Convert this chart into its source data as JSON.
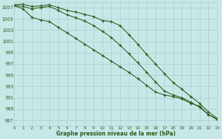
{
  "x": [
    0,
    1,
    2,
    3,
    4,
    5,
    6,
    7,
    8,
    9,
    10,
    11,
    12,
    13,
    14,
    15,
    16,
    17,
    18,
    19,
    20,
    21,
    22,
    23
  ],
  "line_top": [
    1007.5,
    1007.6,
    1007.2,
    1007.3,
    1007.5,
    1007.0,
    1006.5,
    1006.2,
    1005.8,
    1005.4,
    1004.7,
    1004.5,
    1003.8,
    1002.2,
    1000.5,
    998.7,
    997.0,
    995.3,
    993.7,
    992.5,
    991.2,
    990.0,
    988.5,
    987.3
  ],
  "line_mid": [
    1007.4,
    1007.2,
    1006.8,
    1007.0,
    1007.2,
    1006.5,
    1005.7,
    1005.2,
    1004.6,
    1003.8,
    1002.8,
    1001.7,
    1000.3,
    998.8,
    997.2,
    995.5,
    993.8,
    992.2,
    991.5,
    991.0,
    990.2,
    989.3,
    988.0,
    987.2
  ],
  "line_bot": [
    1007.3,
    1006.8,
    1005.3,
    1004.8,
    1004.5,
    1003.5,
    1002.5,
    1001.5,
    1000.5,
    999.5,
    998.5,
    997.5,
    996.5,
    995.5,
    994.4,
    993.2,
    992.0,
    991.5,
    991.2,
    990.8,
    990.0,
    989.5,
    988.0,
    987.1
  ],
  "line_color": "#2d5a1b",
  "bg_color": "#c8e8e8",
  "grid_color": "#a8cccc",
  "xlabel": "Graphe pression niveau de la mer (hPa)",
  "ylim": [
    986,
    1008
  ],
  "xlim": [
    0,
    23
  ],
  "yticks": [
    987,
    989,
    991,
    993,
    995,
    997,
    999,
    1001,
    1003,
    1005,
    1007
  ],
  "xticks": [
    0,
    1,
    2,
    3,
    4,
    5,
    6,
    7,
    8,
    9,
    10,
    11,
    12,
    13,
    14,
    15,
    16,
    17,
    18,
    19,
    20,
    21,
    22,
    23
  ]
}
